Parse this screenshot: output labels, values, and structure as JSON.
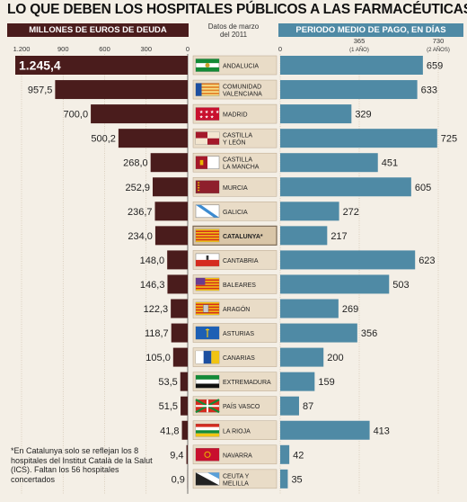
{
  "title": "LO QUE DEBEN LOS HOSPITALES PÚBLICOS A LAS FARMACÉUTICAS",
  "headers": {
    "debt": "MILLONES DE EUROS DE DEUDA",
    "date_line1": "Datos de marzo",
    "date_line2": "del 2011",
    "days": "PERIODO MEDIO DE PAGO, EN DÍAS"
  },
  "footnote": "*En Catalunya solo se reflejan los 8 hospitales del Institut Català de la Salut (ICS). Faltan los 56 hospitales concertados",
  "colors": {
    "debt_bar": "#4a1c1c",
    "days_bar": "#4f8aa5",
    "label_box": "#e9dcc7",
    "label_box_highlight": "#d9c6a8",
    "background": "#f4efe6"
  },
  "chart_data": [
    {
      "type": "bar",
      "orientation": "horizontal",
      "direction": "right-to-left",
      "title": "MILLONES DE EUROS DE DEUDA",
      "xlim": [
        0,
        1200
      ],
      "ticks": [
        "1.200",
        "900",
        "600",
        "300",
        "0"
      ],
      "tick_values": [
        1200,
        900,
        600,
        300,
        0
      ],
      "categories": [
        "ANDALUCIA",
        "COMUNIDAD VALENCIANA",
        "MADRID",
        "CASTILLA Y LEÓN",
        "CASTILLA LA MANCHA",
        "MURCIA",
        "GALICIA",
        "CATALUNYA*",
        "CANTABRIA",
        "BALEARES",
        "ARAGÓN",
        "ASTURIAS",
        "CANARIAS",
        "EXTREMADURA",
        "PAÍS VASCO",
        "LA RIOJA",
        "NAVARRA",
        "CEUTA Y MELILLA"
      ],
      "values": [
        1245.4,
        957.5,
        700.0,
        500.2,
        268.0,
        252.9,
        236.7,
        234.0,
        148.0,
        146.3,
        122.3,
        118.7,
        105.0,
        53.5,
        51.5,
        41.8,
        9.4,
        0.9
      ],
      "value_labels": [
        "1.245,4",
        "957,5",
        "700,0",
        "500,2",
        "268,0",
        "252,9",
        "236,7",
        "234,0",
        "148,0",
        "146,3",
        "122,3",
        "118,7",
        "105,0",
        "53,5",
        "51,5",
        "41,8",
        "9,4",
        "0,9"
      ]
    },
    {
      "type": "bar",
      "orientation": "horizontal",
      "title": "PERIODO MEDIO DE PAGO, EN DÍAS",
      "xlim": [
        0,
        730
      ],
      "ticks": [
        "0",
        "365",
        "730"
      ],
      "tick_values": [
        0,
        365,
        730
      ],
      "tick_sublabels": [
        "",
        "(1 AÑO)",
        "(2 AÑOS)"
      ],
      "categories": [
        "ANDALUCIA",
        "COMUNIDAD VALENCIANA",
        "MADRID",
        "CASTILLA Y LEÓN",
        "CASTILLA LA MANCHA",
        "MURCIA",
        "GALICIA",
        "CATALUNYA*",
        "CANTABRIA",
        "BALEARES",
        "ARAGÓN",
        "ASTURIAS",
        "CANARIAS",
        "EXTREMADURA",
        "PAÍS VASCO",
        "LA RIOJA",
        "NAVARRA",
        "CEUTA Y MELILLA"
      ],
      "values": [
        659,
        633,
        329,
        725,
        451,
        605,
        272,
        217,
        623,
        503,
        269,
        356,
        200,
        159,
        87,
        413,
        42,
        35
      ],
      "value_labels": [
        "659",
        "633",
        "329",
        "725",
        "451",
        "605",
        "272",
        "217",
        "623",
        "503",
        "269",
        "356",
        "200",
        "159",
        "87",
        "413",
        "42",
        "35"
      ]
    }
  ],
  "regions": [
    {
      "line1": "ANDALUCIA",
      "line2": "",
      "flag": "andalucia-flag"
    },
    {
      "line1": "COMUNIDAD",
      "line2": "VALENCIANA",
      "flag": "valencia-flag"
    },
    {
      "line1": "MADRID",
      "line2": "",
      "flag": "madrid-flag"
    },
    {
      "line1": "CASTILLA",
      "line2": "Y LEÓN",
      "flag": "castilla-leon-flag"
    },
    {
      "line1": "CASTILLA",
      "line2": "LA MANCHA",
      "flag": "castilla-mancha-flag"
    },
    {
      "line1": "MURCIA",
      "line2": "",
      "flag": "murcia-flag"
    },
    {
      "line1": "GALICIA",
      "line2": "",
      "flag": "galicia-flag"
    },
    {
      "line1": "CATALUNYA*",
      "line2": "",
      "flag": "catalunya-flag"
    },
    {
      "line1": "CANTABRIA",
      "line2": "",
      "flag": "cantabria-flag"
    },
    {
      "line1": "BALEARES",
      "line2": "",
      "flag": "baleares-flag"
    },
    {
      "line1": "ARAGÓN",
      "line2": "",
      "flag": "aragon-flag"
    },
    {
      "line1": "ASTURIAS",
      "line2": "",
      "flag": "asturias-flag"
    },
    {
      "line1": "CANARIAS",
      "line2": "",
      "flag": "canarias-flag"
    },
    {
      "line1": "EXTREMADURA",
      "line2": "",
      "flag": "extremadura-flag"
    },
    {
      "line1": "PAÍS VASCO",
      "line2": "",
      "flag": "pais-vasco-flag"
    },
    {
      "line1": "LA RIOJA",
      "line2": "",
      "flag": "la-rioja-flag"
    },
    {
      "line1": "NAVARRA",
      "line2": "",
      "flag": "navarra-flag"
    },
    {
      "line1": "CEUTA Y",
      "line2": "MELILLA",
      "flag": "ceuta-melilla-flag"
    }
  ]
}
